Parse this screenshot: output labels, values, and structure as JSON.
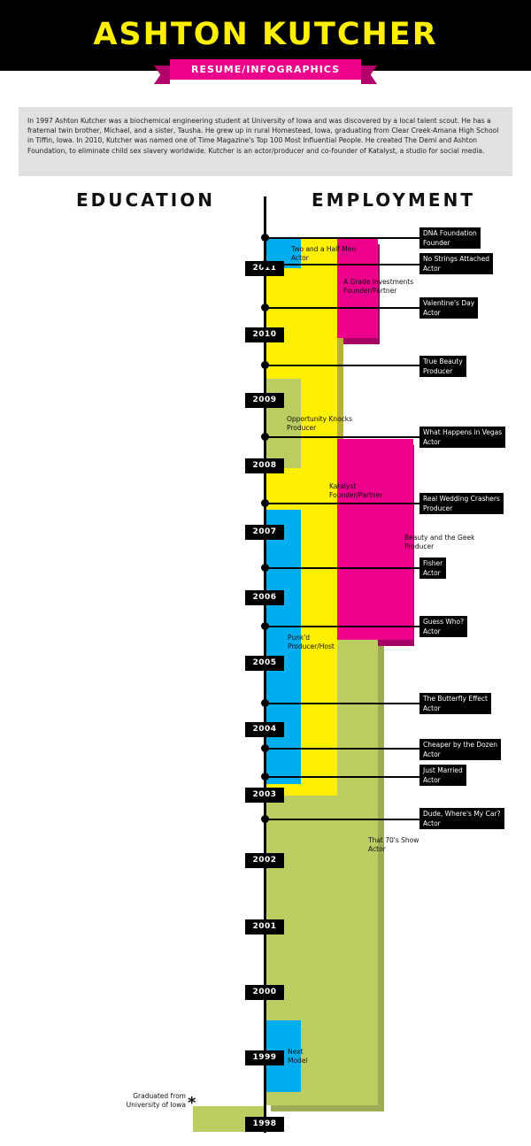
{
  "header": {
    "title": "ASHTON KUTCHER",
    "subtitle": "RESUME/INFOGRAPHICS"
  },
  "bio": "In 1997 Ashton Kutcher was a biochemical engineering student at University of Iowa and was discovered by a local talent scout. He has a fraternal twin brother, Michael, and a sister, Tausha. He grew up in rural Homestead, Iowa, graduating from Clear Creek-Amana High School in Tiffin, Iowa. In 2010, Kutcher was named one of Time Magazine's Top 100 Most Influential People. He created The Demi and Ashton Foundation, to eliminate child sex slavery worldwide. Kutcher is an actor/producer and co-founder of Katalyst, a studio for social media.",
  "columns": {
    "education": "EDUCATION",
    "employment": "EMPLOYMENT"
  },
  "colors": {
    "yellow": "#ffef00",
    "blue": "#00aeef",
    "pink": "#ec008c",
    "green": "#bccd62",
    "black": "#000000"
  },
  "years": [
    "2011",
    "2010",
    "2009",
    "2008",
    "2007",
    "2006",
    "2005",
    "2004",
    "2003",
    "2002",
    "2001",
    "2000",
    "1999",
    "1998"
  ],
  "bars": [
    {
      "title": "Two and a Half Men",
      "role": "Actor"
    },
    {
      "title": "A Grade Investments",
      "role": "Founder/Partner"
    },
    {
      "title": "Opportunity Knocks",
      "role": "Producer"
    },
    {
      "title": "Katalyst",
      "role": "Founder/Partner"
    },
    {
      "title": "Beauty and the Geek",
      "role": "Producer"
    },
    {
      "title": "Punk'd",
      "role": "Producer/Host"
    },
    {
      "title": "That 70's Show",
      "role": "Actor"
    },
    {
      "title": "Next",
      "role": "Model"
    }
  ],
  "events": [
    {
      "title": "DNA Foundation",
      "role": "Founder"
    },
    {
      "title": "No Strings Attached",
      "role": "Actor"
    },
    {
      "title": "Valentine's Day",
      "role": "Actor"
    },
    {
      "title": "True Beauty",
      "role": "Producer"
    },
    {
      "title": "What Happens in Vegas",
      "role": "Actor"
    },
    {
      "title": "Real Wedding Crashers",
      "role": "Producer"
    },
    {
      "title": "Fisher",
      "role": "Actor"
    },
    {
      "title": "Guess Who?",
      "role": "Actor"
    },
    {
      "title": "The Butterfly Effect",
      "role": "Actor"
    },
    {
      "title": "Cheaper by the Dozen",
      "role": "Actor"
    },
    {
      "title": "Just Married",
      "role": "Actor"
    },
    {
      "title": "Dude, Where's My Car?",
      "role": "Actor"
    }
  ],
  "education": {
    "line1": "Graduated from",
    "line2": "University of Iowa",
    "mark": "*"
  }
}
